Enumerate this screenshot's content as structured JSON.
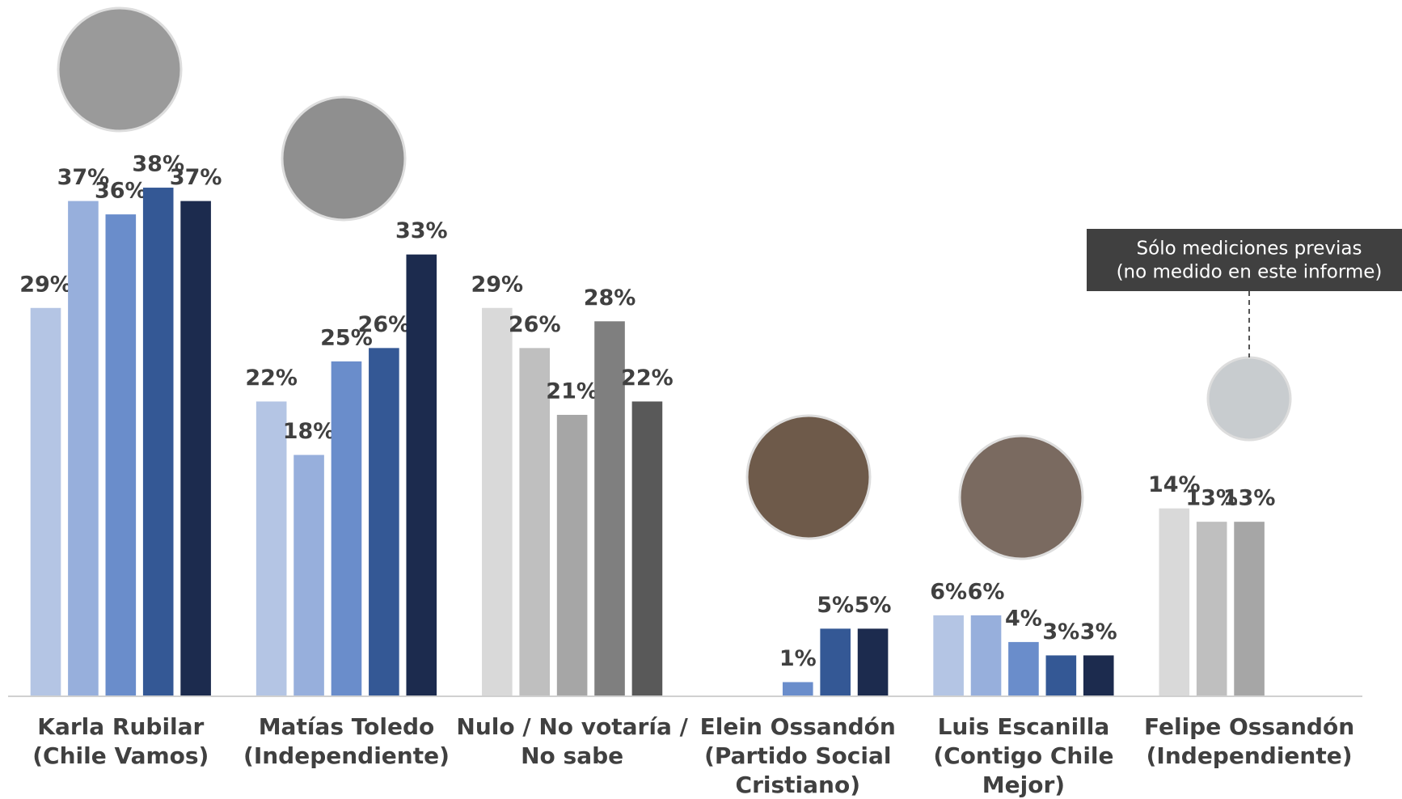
{
  "chart_data": {
    "type": "bar",
    "ylim": [
      0,
      40
    ],
    "groups": [
      {
        "label": [
          "Karla Rubilar",
          "(Chile Vamos)"
        ],
        "values": [
          29,
          37,
          36,
          38,
          37
        ],
        "value_labels": [
          "29%",
          "37%",
          "36%",
          "38%",
          "37%"
        ],
        "colors": [
          "#b4c5e4",
          "#97afdc",
          "#6a8dcb",
          "#345895",
          "#1c2b4e"
        ]
      },
      {
        "label": [
          "Matías Toledo",
          "(Independiente)"
        ],
        "values": [
          22,
          18,
          25,
          26,
          33
        ],
        "value_labels": [
          "22%",
          "18%",
          "25%",
          "26%",
          "33%"
        ],
        "colors": [
          "#b4c5e4",
          "#97afdc",
          "#6a8dcb",
          "#345895",
          "#1c2b4e"
        ]
      },
      {
        "label": [
          "Nulo / No votaría /",
          "No sabe"
        ],
        "values": [
          29,
          26,
          21,
          28,
          22
        ],
        "value_labels": [
          "29%",
          "26%",
          "21%",
          "28%",
          "22%"
        ],
        "colors": [
          "#d9d9d9",
          "#bfbfbf",
          "#a6a6a6",
          "#7f7f7f",
          "#595959"
        ]
      },
      {
        "label": [
          "Elein Ossandón",
          "(Partido Social",
          "Cristiano)"
        ],
        "values": [
          null,
          null,
          1,
          5,
          5
        ],
        "value_labels": [
          null,
          null,
          "1%",
          "5%",
          "5%"
        ],
        "colors": [
          "#b4c5e4",
          "#97afdc",
          "#6a8dcb",
          "#345895",
          "#1c2b4e"
        ]
      },
      {
        "label": [
          "Luis Escanilla",
          "(Contigo Chile",
          "Mejor)"
        ],
        "values": [
          6,
          6,
          4,
          3,
          3
        ],
        "value_labels": [
          "6%",
          "6%",
          "4%",
          "3%",
          "3%"
        ],
        "colors": [
          "#b4c5e4",
          "#97afdc",
          "#6a8dcb",
          "#345895",
          "#1c2b4e"
        ]
      },
      {
        "label": [
          "Felipe Ossandón",
          "(Independiente)"
        ],
        "values": [
          14,
          13,
          13,
          null,
          null
        ],
        "value_labels": [
          "14%",
          "13%",
          "13%",
          null,
          null
        ],
        "colors": [
          "#d9d9d9",
          "#bfbfbf",
          "#a6a6a6",
          "#7f7f7f",
          "#595959"
        ]
      }
    ],
    "annotation": [
      "Sólo mediciones previas",
      "(no medido en este informe)"
    ]
  }
}
